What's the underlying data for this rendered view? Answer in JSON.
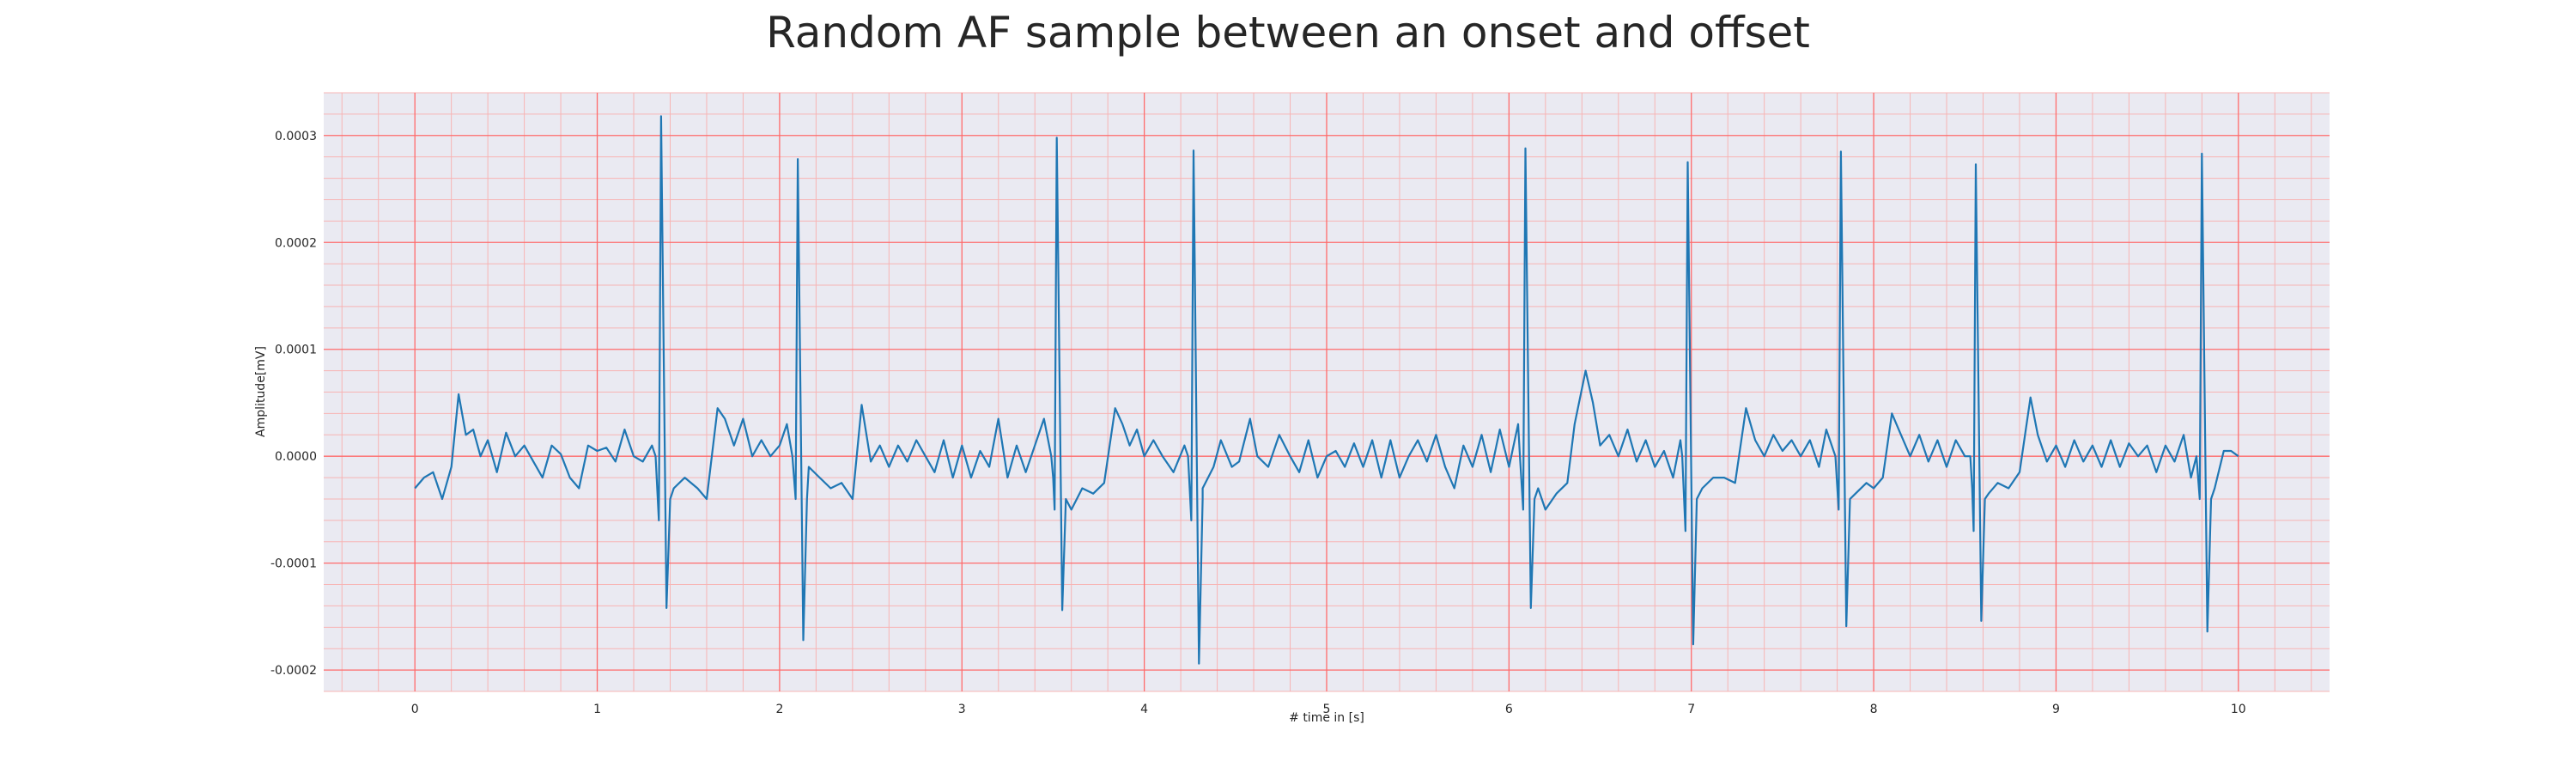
{
  "chart_data": {
    "type": "line",
    "title": "Random AF sample between an onset and offset",
    "xlabel": "# time in [s]",
    "ylabel": "Amplitude[mV]",
    "xlim": [
      -0.5,
      10.5
    ],
    "ylim": [
      -0.00022,
      0.00034
    ],
    "x_ticks": [
      0,
      1,
      2,
      3,
      4,
      5,
      6,
      7,
      8,
      9,
      10
    ],
    "x_tick_labels": [
      "0",
      "1",
      "2",
      "3",
      "4",
      "5",
      "6",
      "7",
      "8",
      "9",
      "10"
    ],
    "y_ticks": [
      -0.0002,
      -0.0001,
      0.0,
      0.0001,
      0.0002,
      0.0003
    ],
    "y_tick_labels": [
      "-0.0002",
      "-0.0001",
      "0.0000",
      "0.0001",
      "0.0002",
      "0.0003"
    ],
    "grid": true,
    "colors": {
      "line": "#1f77b4",
      "background": "#eaeaf2",
      "major_grid": "#ff6b6b",
      "minor_grid": "#f7b4b4"
    },
    "series": [
      {
        "baseline": [
          [
            0.0,
            -3e-05
          ],
          [
            0.05,
            -2e-05
          ],
          [
            0.1,
            -1.5e-05
          ],
          [
            0.15,
            -4e-05
          ],
          [
            0.2,
            -1e-05
          ],
          [
            0.24,
            5.8e-05
          ],
          [
            0.28,
            2e-05
          ],
          [
            0.32,
            2.5e-05
          ],
          [
            0.36,
            0.0
          ],
          [
            0.4,
            1.5e-05
          ],
          [
            0.45,
            -1.5e-05
          ],
          [
            0.5,
            2.2e-05
          ],
          [
            0.55,
            0.0
          ],
          [
            0.6,
            1e-05
          ],
          [
            0.65,
            -5e-06
          ],
          [
            0.7,
            -2e-05
          ],
          [
            0.75,
            1e-05
          ],
          [
            0.8,
            2e-06
          ],
          [
            0.85,
            -2e-05
          ],
          [
            0.9,
            -3e-05
          ],
          [
            0.95,
            1e-05
          ],
          [
            1.0,
            5e-06
          ],
          [
            1.05,
            8e-06
          ],
          [
            1.1,
            -5e-06
          ],
          [
            1.15,
            2.5e-05
          ],
          [
            1.2,
            0.0
          ],
          [
            1.25,
            -5e-06
          ],
          [
            1.3,
            1e-05
          ],
          [
            1.42,
            -3e-05
          ],
          [
            1.48,
            -2e-05
          ],
          [
            1.55,
            -3e-05
          ],
          [
            1.6,
            -4e-05
          ],
          [
            1.66,
            4.5e-05
          ],
          [
            1.7,
            3.5e-05
          ],
          [
            1.75,
            1e-05
          ],
          [
            1.8,
            3.5e-05
          ],
          [
            1.85,
            0.0
          ],
          [
            1.9,
            1.5e-05
          ],
          [
            1.95,
            0.0
          ],
          [
            2.0,
            1e-05
          ],
          [
            2.04,
            3e-05
          ],
          [
            2.16,
            -1e-05
          ],
          [
            2.22,
            -2e-05
          ],
          [
            2.28,
            -3e-05
          ],
          [
            2.34,
            -2.5e-05
          ],
          [
            2.4,
            -4e-05
          ],
          [
            2.45,
            4.8e-05
          ],
          [
            2.5,
            -5e-06
          ],
          [
            2.55,
            1e-05
          ],
          [
            2.6,
            -1e-05
          ],
          [
            2.65,
            1e-05
          ],
          [
            2.7,
            -5e-06
          ],
          [
            2.75,
            1.5e-05
          ],
          [
            2.8,
            0.0
          ],
          [
            2.85,
            -1.5e-05
          ],
          [
            2.9,
            1.5e-05
          ],
          [
            2.95,
            -2e-05
          ],
          [
            3.0,
            1e-05
          ],
          [
            3.05,
            -2e-05
          ],
          [
            3.1,
            5e-06
          ],
          [
            3.15,
            -1e-05
          ],
          [
            3.2,
            3.5e-05
          ],
          [
            3.25,
            -2e-05
          ],
          [
            3.3,
            1e-05
          ],
          [
            3.35,
            -1.5e-05
          ],
          [
            3.4,
            1e-05
          ],
          [
            3.45,
            3.5e-05
          ],
          [
            3.5,
            -2e-05
          ],
          [
            3.6,
            -5e-05
          ],
          [
            3.66,
            -3e-05
          ],
          [
            3.72,
            -3.5e-05
          ],
          [
            3.78,
            -2.5e-05
          ],
          [
            3.84,
            4.5e-05
          ],
          [
            3.88,
            3e-05
          ],
          [
            3.92,
            1e-05
          ],
          [
            3.96,
            2.5e-05
          ],
          [
            4.0,
            0.0
          ],
          [
            4.05,
            1.5e-05
          ],
          [
            4.1,
            0.0
          ],
          [
            4.16,
            -1.5e-05
          ],
          [
            4.22,
            1e-05
          ],
          [
            4.32,
            -3e-05
          ],
          [
            4.38,
            -1e-05
          ],
          [
            4.42,
            1.5e-05
          ],
          [
            4.48,
            -1e-05
          ],
          [
            4.52,
            -5e-06
          ],
          [
            4.58,
            3.5e-05
          ],
          [
            4.62,
            0.0
          ],
          [
            4.68,
            -1e-05
          ],
          [
            4.74,
            2e-05
          ],
          [
            4.8,
            0.0
          ],
          [
            4.85,
            -1.5e-05
          ],
          [
            4.9,
            1.5e-05
          ],
          [
            4.95,
            -2e-05
          ],
          [
            5.0,
            0.0
          ],
          [
            5.05,
            5e-06
          ],
          [
            5.1,
            -1e-05
          ],
          [
            5.15,
            1.2e-05
          ],
          [
            5.2,
            -1e-05
          ],
          [
            5.25,
            1.5e-05
          ],
          [
            5.3,
            -2e-05
          ],
          [
            5.35,
            1.5e-05
          ],
          [
            5.4,
            -2e-05
          ],
          [
            5.45,
            0.0
          ],
          [
            5.5,
            1.5e-05
          ],
          [
            5.55,
            -5e-06
          ],
          [
            5.6,
            2e-05
          ],
          [
            5.65,
            -1e-05
          ],
          [
            5.7,
            -3e-05
          ],
          [
            5.75,
            1e-05
          ],
          [
            5.8,
            -1e-05
          ],
          [
            5.85,
            2e-05
          ],
          [
            5.9,
            -1.5e-05
          ],
          [
            5.95,
            2.5e-05
          ],
          [
            6.0,
            -1e-05
          ],
          [
            6.05,
            3e-05
          ],
          [
            6.16,
            -3e-05
          ],
          [
            6.2,
            -5e-05
          ],
          [
            6.26,
            -3.5e-05
          ],
          [
            6.32,
            -2.5e-05
          ],
          [
            6.36,
            3e-05
          ],
          [
            6.42,
            8e-05
          ],
          [
            6.46,
            5e-05
          ],
          [
            6.5,
            1e-05
          ],
          [
            6.55,
            2e-05
          ],
          [
            6.6,
            0.0
          ],
          [
            6.65,
            2.5e-05
          ],
          [
            6.7,
            -5e-06
          ],
          [
            6.75,
            1.5e-05
          ],
          [
            6.8,
            -1e-05
          ],
          [
            6.85,
            5e-06
          ],
          [
            6.9,
            -2e-05
          ],
          [
            6.94,
            1.5e-05
          ],
          [
            7.06,
            -3e-05
          ],
          [
            7.12,
            -2e-05
          ],
          [
            7.18,
            -2e-05
          ],
          [
            7.24,
            -2.5e-05
          ],
          [
            7.3,
            4.5e-05
          ],
          [
            7.35,
            1.5e-05
          ],
          [
            7.4,
            0.0
          ],
          [
            7.45,
            2e-05
          ],
          [
            7.5,
            5e-06
          ],
          [
            7.55,
            1.5e-05
          ],
          [
            7.6,
            0.0
          ],
          [
            7.65,
            1.5e-05
          ],
          [
            7.7,
            -1e-05
          ],
          [
            7.74,
            2.5e-05
          ],
          [
            7.9,
            -3.5e-05
          ],
          [
            7.96,
            -2.5e-05
          ],
          [
            8.0,
            -3e-05
          ],
          [
            8.05,
            -2e-05
          ],
          [
            8.1,
            4e-05
          ],
          [
            8.15,
            2e-05
          ],
          [
            8.2,
            0.0
          ],
          [
            8.25,
            2e-05
          ],
          [
            8.3,
            -5e-06
          ],
          [
            8.35,
            1.5e-05
          ],
          [
            8.4,
            -1e-05
          ],
          [
            8.45,
            1.5e-05
          ],
          [
            8.5,
            0.0
          ],
          [
            8.54,
            -3e-05
          ],
          [
            8.63,
            -3.5e-05
          ],
          [
            8.68,
            -2.5e-05
          ],
          [
            8.74,
            -3e-05
          ],
          [
            8.8,
            -1.5e-05
          ],
          [
            8.86,
            5.5e-05
          ],
          [
            8.9,
            2e-05
          ],
          [
            8.95,
            -5e-06
          ],
          [
            9.0,
            1e-05
          ],
          [
            9.05,
            -1e-05
          ],
          [
            9.1,
            1.5e-05
          ],
          [
            9.15,
            -5e-06
          ],
          [
            9.2,
            1e-05
          ],
          [
            9.25,
            -1e-05
          ],
          [
            9.3,
            1.5e-05
          ],
          [
            9.35,
            -1e-05
          ],
          [
            9.4,
            1.2e-05
          ],
          [
            9.45,
            0.0
          ],
          [
            9.5,
            1e-05
          ],
          [
            9.55,
            -1.5e-05
          ],
          [
            9.6,
            1e-05
          ],
          [
            9.65,
            -5e-06
          ],
          [
            9.7,
            2e-05
          ],
          [
            9.74,
            -2e-05
          ],
          [
            9.87,
            -3e-05
          ],
          [
            9.92,
            5e-06
          ],
          [
            9.96,
            5e-06
          ],
          [
            10.0,
            0.0
          ]
        ],
        "beats": [
          [
            1.35,
            -6e-05,
            0.000318,
            -0.000142
          ],
          [
            2.1,
            -4e-05,
            0.000278,
            -0.000172
          ],
          [
            3.52,
            -5e-05,
            0.000298,
            -0.000144
          ],
          [
            4.27,
            -6e-05,
            0.000286,
            -0.000194
          ],
          [
            6.09,
            -5e-05,
            0.000288,
            -0.000142
          ],
          [
            6.98,
            -7e-05,
            0.000275,
            -0.000176
          ],
          [
            7.82,
            -5e-05,
            0.000285,
            -0.000159
          ],
          [
            8.56,
            -7e-05,
            0.000273,
            -0.000154
          ],
          [
            9.8,
            -4e-05,
            0.000283,
            -0.000164
          ]
        ]
      }
    ]
  }
}
